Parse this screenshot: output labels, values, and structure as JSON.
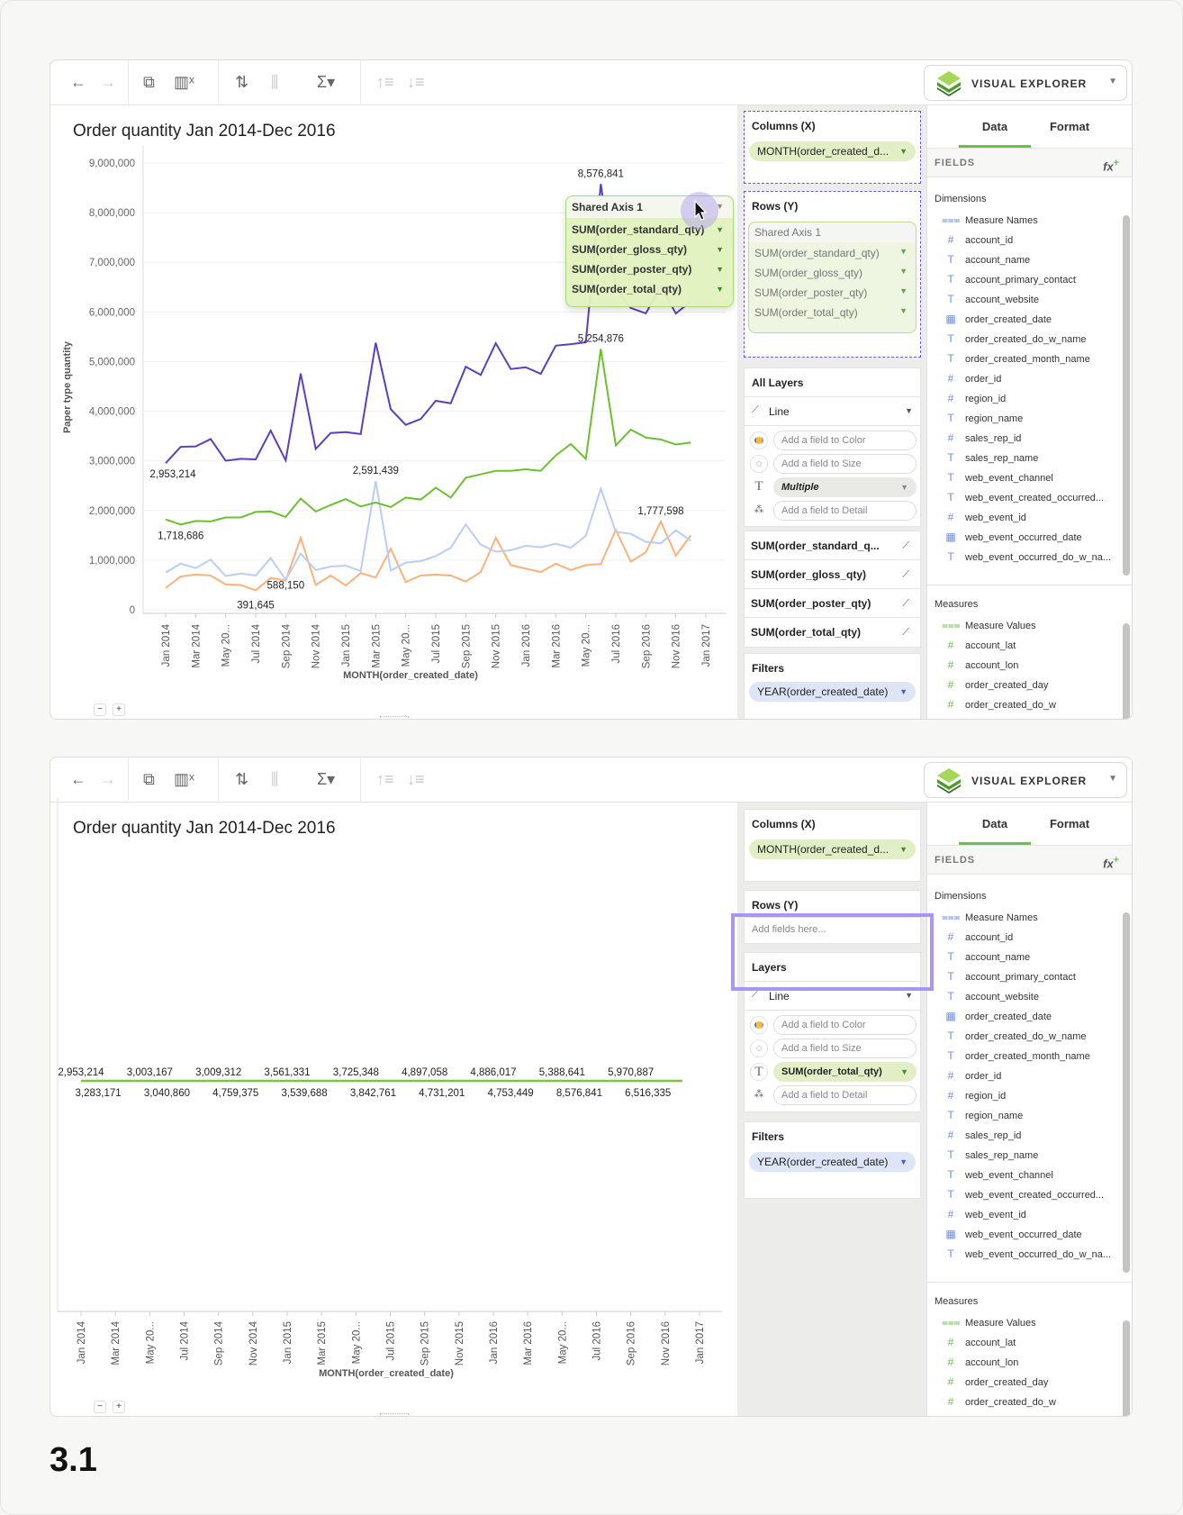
{
  "toolbar": {
    "back_icon": "arrow-left-icon",
    "forward_icon": "arrow-right-icon",
    "app_label": "VISUAL EXPLORER"
  },
  "top": {
    "title": "Order quantity Jan 2014-Dec 2016",
    "columns_label": "Columns (X)",
    "columns_pill": "MONTH(order_created_d...",
    "rows_label": "Rows (Y)",
    "shared_axis": "Shared Axis 1",
    "rows_pills": [
      "SUM(order_standard_qty)",
      "SUM(order_gloss_qty)",
      "SUM(order_poster_qty)",
      "SUM(order_total_qty)"
    ],
    "layers_label": "All Layers",
    "mark_type": "Line",
    "color_placeholder": "Add a field to Color",
    "size_placeholder": "Add a field to Size",
    "label_value": "Multiple",
    "detail_placeholder": "Add a field to Detail",
    "layer_items": [
      "SUM(order_standard_q...",
      "SUM(order_gloss_qty)",
      "SUM(order_poster_qty)",
      "SUM(order_total_qty)"
    ],
    "filters_label": "Filters",
    "filter_pill": "YEAR(order_created_date)",
    "drag_overlay": {
      "header": "Shared Axis 1",
      "items": [
        "SUM(order_standard_qty)",
        "SUM(order_gloss_qty)",
        "SUM(order_poster_qty)",
        "SUM(order_total_qty)"
      ]
    }
  },
  "bottom": {
    "title": "Order quantity Jan 2014-Dec 2016",
    "columns_label": "Columns (X)",
    "columns_pill": "MONTH(order_created_d...",
    "rows_label": "Rows (Y)",
    "rows_placeholder": "Add fields here...",
    "layers_label": "Layers",
    "mark_type": "Line",
    "color_placeholder": "Add a field to Color",
    "size_placeholder": "Add a field to Size",
    "label_value": "SUM(order_total_qty)",
    "detail_placeholder": "Add a field to Detail",
    "filters_label": "Filters",
    "filter_pill": "YEAR(order_created_date)"
  },
  "fields_panel": {
    "tabs": [
      "Data",
      "Format"
    ],
    "active_tab": "Data",
    "header": "FIELDS",
    "fx_label": "fx",
    "dimensions_label": "Dimensions",
    "dimensions": [
      {
        "name": "Measure Names",
        "icon": "measure-names-icon"
      },
      {
        "name": "account_id",
        "icon": "hash-icon"
      },
      {
        "name": "account_name",
        "icon": "text-icon"
      },
      {
        "name": "account_primary_contact",
        "icon": "text-icon"
      },
      {
        "name": "account_website",
        "icon": "text-icon"
      },
      {
        "name": "order_created_date",
        "icon": "calendar-icon"
      },
      {
        "name": "order_created_do_w_name",
        "icon": "text-icon"
      },
      {
        "name": "order_created_month_name",
        "icon": "text-icon"
      },
      {
        "name": "order_id",
        "icon": "hash-icon"
      },
      {
        "name": "region_id",
        "icon": "hash-icon"
      },
      {
        "name": "region_name",
        "icon": "text-icon"
      },
      {
        "name": "sales_rep_id",
        "icon": "hash-icon"
      },
      {
        "name": "sales_rep_name",
        "icon": "text-icon"
      },
      {
        "name": "web_event_channel",
        "icon": "text-icon"
      },
      {
        "name": "web_event_created_occurred...",
        "icon": "text-icon"
      },
      {
        "name": "web_event_id",
        "icon": "hash-icon"
      },
      {
        "name": "web_event_occurred_date",
        "icon": "calendar-icon"
      },
      {
        "name": "web_event_occurred_do_w_na...",
        "icon": "text-icon"
      }
    ],
    "measures_label": "Measures",
    "measures": [
      {
        "name": "Measure Values",
        "icon": "measure-values-icon"
      },
      {
        "name": "account_lat",
        "icon": "hash-icon"
      },
      {
        "name": "account_lon",
        "icon": "hash-icon"
      },
      {
        "name": "order_created_day",
        "icon": "hash-icon"
      },
      {
        "name": "order_created_do_w",
        "icon": "hash-icon"
      }
    ]
  },
  "figure_label": "3.1",
  "chart_data": [
    {
      "type": "line",
      "title": "Order quantity Jan 2014-Dec 2016",
      "xlabel": "MONTH(order_created_date)",
      "ylabel": "Paper type quantity",
      "ylim": [
        0,
        9000000
      ],
      "yticks": [
        "0",
        "1,000,000",
        "2,000,000",
        "3,000,000",
        "4,000,000",
        "5,000,000",
        "6,000,000",
        "7,000,000",
        "8,000,000",
        "9,000,000"
      ],
      "x_range": [
        "Jan 2014",
        "Jan 2017"
      ],
      "xtick_labels": [
        "Jan 2014",
        "Mar 2014",
        "May 20...",
        "Jul 2014",
        "Sep 2014",
        "Nov 2014",
        "Jan 2015",
        "Mar 2015",
        "May 20...",
        "Jul 2015",
        "Sep 2015",
        "Nov 2015",
        "Jan 2016",
        "Mar 2016",
        "May 20...",
        "Jul 2016",
        "Sep 2016",
        "Nov 2016",
        "Jan 2017"
      ],
      "x": [
        "2014-01",
        "2014-02",
        "2014-03",
        "2014-04",
        "2014-05",
        "2014-06",
        "2014-07",
        "2014-08",
        "2014-09",
        "2014-10",
        "2014-11",
        "2014-12",
        "2015-01",
        "2015-02",
        "2015-03",
        "2015-04",
        "2015-05",
        "2015-06",
        "2015-07",
        "2015-08",
        "2015-09",
        "2015-10",
        "2015-11",
        "2015-12",
        "2016-01",
        "2016-02",
        "2016-03",
        "2016-04",
        "2016-05",
        "2016-06",
        "2016-07",
        "2016-08",
        "2016-09",
        "2016-10",
        "2016-11",
        "2016-12"
      ],
      "grid": true,
      "series": [
        {
          "color": "#5b3fbf",
          "values": [
            2953214,
            3283171,
            3290000,
            3440000,
            3003167,
            3040860,
            3030000,
            3610000,
            3009312,
            4759375,
            3240000,
            3561331,
            3580000,
            3539688,
            5380000,
            4040000,
            3725348,
            3842761,
            4210000,
            4160000,
            4897058,
            4731201,
            5370000,
            4850000,
            4886017,
            4753449,
            5320000,
            5350000,
            5388641,
            8576841,
            6460000,
            6080000,
            5970887,
            6516335,
            5970000,
            6210000
          ]
        },
        {
          "color": "#6cc02e",
          "values": [
            1820000,
            1718686,
            1790000,
            1780000,
            1860000,
            1860000,
            1970000,
            1980000,
            1870000,
            2240000,
            1980000,
            2110000,
            2230000,
            2080000,
            2160000,
            2070000,
            2260000,
            2220000,
            2460000,
            2260000,
            2660000,
            2730000,
            2800000,
            2800000,
            2830000,
            2800000,
            3110000,
            3340000,
            3040000,
            5254876,
            3310000,
            3630000,
            3470000,
            3430000,
            3330000,
            3370000
          ]
        },
        {
          "color": "#b9cdf6",
          "values": [
            750000,
            930000,
            840000,
            1010000,
            680000,
            730000,
            690000,
            1040000,
            610000,
            1130000,
            800000,
            870000,
            890000,
            780000,
            2591439,
            790000,
            950000,
            980000,
            1080000,
            1250000,
            1720000,
            1310000,
            1170000,
            1200000,
            1290000,
            1260000,
            1330000,
            1250000,
            1490000,
            2440000,
            1570000,
            1530000,
            1370000,
            1340000,
            1600000,
            1390000
          ]
        },
        {
          "color": "#fbb27a",
          "values": [
            440000,
            670000,
            710000,
            690000,
            510000,
            500000,
            391645,
            640000,
            588150,
            1450000,
            500000,
            690000,
            490000,
            740000,
            650000,
            1230000,
            560000,
            690000,
            710000,
            690000,
            570000,
            760000,
            1450000,
            900000,
            830000,
            760000,
            930000,
            800000,
            900000,
            920000,
            1610000,
            970000,
            1160000,
            1777598,
            1090000,
            1500000
          ]
        }
      ],
      "data_labels": [
        {
          "series": 0,
          "x": "2014-01",
          "text": "2,953,214",
          "pos": "below"
        },
        {
          "series": 0,
          "x": "2016-06",
          "text": "8,576,841",
          "pos": "above"
        },
        {
          "series": 1,
          "x": "2014-02",
          "text": "1,718,686",
          "pos": "below"
        },
        {
          "series": 1,
          "x": "2016-06",
          "text": "5,254,876",
          "pos": "above"
        },
        {
          "series": 2,
          "x": "2015-03",
          "text": "2,591,439",
          "pos": "above"
        },
        {
          "series": 3,
          "x": "2014-07",
          "text": "391,645",
          "pos": "below"
        },
        {
          "series": 3,
          "x": "2014-09",
          "text": "588,150",
          "pos": "below"
        },
        {
          "series": 3,
          "x": "2016-10",
          "text": "1,777,598",
          "pos": "above"
        }
      ]
    },
    {
      "type": "line",
      "title": "Order quantity Jan 2014-Dec 2016",
      "xlabel": "MONTH(order_created_date)",
      "x_range": [
        "Jan 2014",
        "Jan 2017"
      ],
      "xtick_labels": [
        "Jan 2014",
        "Mar 2014",
        "May 20...",
        "Jul 2014",
        "Sep 2014",
        "Nov 2014",
        "Jan 2015",
        "Mar 2015",
        "May 20...",
        "Jul 2015",
        "Sep 2015",
        "Nov 2015",
        "Jan 2016",
        "Mar 2016",
        "May 20...",
        "Jul 2016",
        "Sep 2016",
        "Nov 2016",
        "Jan 2017"
      ],
      "series": [
        {
          "color": "#7cc53f"
        }
      ],
      "data_labels_above": [
        {
          "x": "2014-01",
          "text": "2,953,214"
        },
        {
          "x": "2014-05",
          "text": "3,003,167"
        },
        {
          "x": "2014-09",
          "text": "3,009,312"
        },
        {
          "x": "2015-01",
          "text": "3,561,331"
        },
        {
          "x": "2015-05",
          "text": "3,725,348"
        },
        {
          "x": "2015-09",
          "text": "4,897,058"
        },
        {
          "x": "2016-01",
          "text": "4,886,017"
        },
        {
          "x": "2016-05",
          "text": "5,388,641"
        },
        {
          "x": "2016-09",
          "text": "5,970,887"
        }
      ],
      "data_labels_below": [
        {
          "x": "2014-02",
          "text": "3,283,171"
        },
        {
          "x": "2014-06",
          "text": "3,040,860"
        },
        {
          "x": "2014-10",
          "text": "4,759,375"
        },
        {
          "x": "2015-02",
          "text": "3,539,688"
        },
        {
          "x": "2015-06",
          "text": "3,842,761"
        },
        {
          "x": "2015-10",
          "text": "4,731,201"
        },
        {
          "x": "2016-02",
          "text": "4,753,449"
        },
        {
          "x": "2016-06",
          "text": "8,576,841"
        },
        {
          "x": "2016-10",
          "text": "6,516,335"
        }
      ]
    }
  ]
}
